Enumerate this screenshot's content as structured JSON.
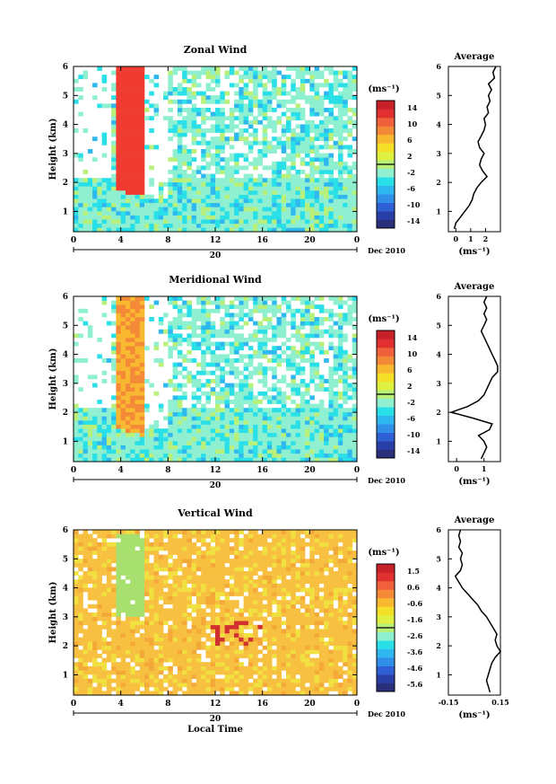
{
  "chart_data": [
    {
      "type": "heatmap",
      "title": "Zonal Wind",
      "ylabel": "Height (km)",
      "xlabel": "",
      "xlim": [
        0,
        24
      ],
      "ylim": [
        0.3,
        6
      ],
      "xticks": [
        "0",
        "4",
        "8",
        "12",
        "16",
        "20",
        "0"
      ],
      "yticks": [
        "1",
        "2",
        "3",
        "4",
        "5",
        "6"
      ],
      "date_day": "20",
      "date_month": "Dec 2010",
      "colorbar": {
        "unit_label": "(ms⁻¹)",
        "ticks": [
          "14",
          "10",
          "6",
          "2",
          "-2",
          "-6",
          "-10",
          "-14"
        ],
        "range": [
          -16,
          16
        ],
        "colors": [
          "#2a2f7a",
          "#2a3ea8",
          "#2f5fd4",
          "#2f8fe8",
          "#2fb8f0",
          "#29dfe8",
          "#8ef0d0",
          "#b8f07a",
          "#e0f040",
          "#f4e028",
          "#f8b830",
          "#f48a38",
          "#f0603c",
          "#e03030",
          "#c82028"
        ]
      },
      "average_panel": {
        "title": "Average",
        "xlabel": "(ms⁻¹)",
        "xticks": [
          "0",
          "1",
          "2"
        ],
        "xlim": [
          -0.5,
          3.0
        ],
        "heights": [
          0.4,
          0.6,
          0.8,
          1.0,
          1.2,
          1.4,
          1.6,
          1.8,
          2.0,
          2.2,
          2.4,
          2.6,
          2.8,
          3.0,
          3.2,
          3.4,
          3.6,
          3.8,
          4.0,
          4.2,
          4.4,
          4.6,
          4.8,
          5.0,
          5.2,
          5.4,
          5.6,
          5.8,
          6.0
        ],
        "values": [
          -0.1,
          0.0,
          0.3,
          0.6,
          0.9,
          1.1,
          1.2,
          1.4,
          1.7,
          2.1,
          1.8,
          1.6,
          1.7,
          1.9,
          1.6,
          1.5,
          1.7,
          1.9,
          2.0,
          1.9,
          2.2,
          2.1,
          2.3,
          2.2,
          2.4,
          2.2,
          2.6,
          2.5,
          2.7
        ]
      }
    },
    {
      "type": "heatmap",
      "title": "Meridional Wind",
      "ylabel": "Height (km)",
      "xlabel": "",
      "xlim": [
        0,
        24
      ],
      "ylim": [
        0.3,
        6
      ],
      "xticks": [
        "0",
        "4",
        "8",
        "12",
        "16",
        "20",
        "0"
      ],
      "yticks": [
        "1",
        "2",
        "3",
        "4",
        "5",
        "6"
      ],
      "date_day": "20",
      "date_month": "Dec 2010",
      "colorbar": {
        "unit_label": "(ms⁻¹)",
        "ticks": [
          "14",
          "10",
          "6",
          "2",
          "-2",
          "-6",
          "-10",
          "-14"
        ],
        "range": [
          -16,
          16
        ],
        "colors": [
          "#2a2f7a",
          "#2a3ea8",
          "#2f5fd4",
          "#2f8fe8",
          "#2fb8f0",
          "#29dfe8",
          "#8ef0d0",
          "#b8f07a",
          "#e0f040",
          "#f4e028",
          "#f8b830",
          "#f48a38",
          "#f0603c",
          "#e03030",
          "#c82028"
        ]
      },
      "average_panel": {
        "title": "Average",
        "xlabel": "(ms⁻¹)",
        "xticks": [
          "0",
          "1"
        ],
        "xlim": [
          -0.3,
          1.6
        ],
        "heights": [
          0.4,
          0.6,
          0.8,
          1.0,
          1.2,
          1.4,
          1.6,
          1.8,
          2.0,
          2.2,
          2.4,
          2.6,
          2.8,
          3.0,
          3.2,
          3.4,
          3.6,
          3.8,
          4.0,
          4.2,
          4.4,
          4.6,
          4.8,
          5.0,
          5.2,
          5.4,
          5.6,
          5.8,
          6.0
        ],
        "values": [
          0.9,
          1.0,
          1.1,
          1.0,
          0.8,
          1.2,
          1.3,
          0.6,
          -0.2,
          0.4,
          0.8,
          1.0,
          1.1,
          1.2,
          1.3,
          1.5,
          1.5,
          1.4,
          1.3,
          1.2,
          1.1,
          1.0,
          0.9,
          1.0,
          1.1,
          1.0,
          1.1,
          1.0,
          1.1
        ]
      }
    },
    {
      "type": "heatmap",
      "title": "Vertical Wind",
      "ylabel": "Height (km)",
      "xlabel": "Local Time",
      "xlim": [
        0,
        24
      ],
      "ylim": [
        0.3,
        6
      ],
      "xticks": [
        "0",
        "4",
        "8",
        "12",
        "16",
        "20",
        "0"
      ],
      "yticks": [
        "1",
        "2",
        "3",
        "4",
        "5",
        "6"
      ],
      "date_day": "20",
      "date_month": "Dec 2010",
      "colorbar": {
        "unit_label": "(ms⁻¹)",
        "ticks": [
          "1.5",
          "0.6",
          "-0.6",
          "-1.6",
          "-2.6",
          "-3.6",
          "-4.6",
          "-5.6"
        ],
        "range": [
          -6,
          2
        ],
        "colors": [
          "#2a2f7a",
          "#2a3ea8",
          "#2f5fd4",
          "#2f8fe8",
          "#2fb8f0",
          "#29dfe8",
          "#8ef0d0",
          "#b8f07a",
          "#e0f040",
          "#f4e028",
          "#f8b830",
          "#f48a38",
          "#f0603c",
          "#e03030",
          "#c82028"
        ]
      },
      "average_panel": {
        "title": "Average",
        "xlabel": "(ms⁻¹)",
        "xticks": [
          "-0.15",
          "0.15"
        ],
        "xlim": [
          -0.15,
          0.15
        ],
        "heights": [
          0.4,
          0.6,
          0.8,
          1.0,
          1.2,
          1.4,
          1.6,
          1.8,
          2.0,
          2.2,
          2.4,
          2.6,
          2.8,
          3.0,
          3.2,
          3.4,
          3.6,
          3.8,
          4.0,
          4.2,
          4.4,
          4.6,
          4.8,
          5.0,
          5.2,
          5.4,
          5.6,
          5.8,
          6.0
        ],
        "values": [
          0.09,
          0.08,
          0.07,
          0.08,
          0.09,
          0.1,
          0.12,
          0.15,
          0.13,
          0.12,
          0.13,
          0.11,
          0.09,
          0.07,
          0.04,
          0.02,
          -0.01,
          -0.04,
          -0.07,
          -0.09,
          -0.11,
          -0.08,
          -0.07,
          -0.08,
          -0.07,
          -0.09,
          -0.08,
          -0.09,
          -0.08
        ]
      }
    }
  ]
}
